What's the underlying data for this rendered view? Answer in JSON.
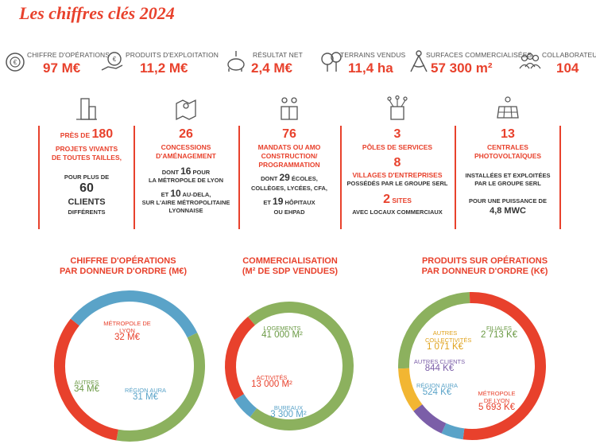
{
  "title": "Les chiffres clés 2024",
  "colors": {
    "red": "#e8412c",
    "green": "#8cb15e",
    "blue": "#5aa3c8",
    "yellow": "#f2b632",
    "purple": "#7b5ea8"
  },
  "kpis": [
    {
      "label": "CHIFFRE D'OPÉRATIONS",
      "value": "97 M€",
      "icon": "coins-icon"
    },
    {
      "label": "PRODUITS D'EXPLOITATION",
      "value": "11,2 M€",
      "icon": "money-bag-hand-icon"
    },
    {
      "label": "RÉSULTAT NET",
      "value": "2,4 M€",
      "icon": "piggy-bank-icon"
    },
    {
      "label": "TERRAINS VENDUS",
      "value": "11,4 ha",
      "icon": "trees-icon"
    },
    {
      "label": "SURFACES COMMERCIALISÉES",
      "value": "57 300 m²",
      "icon": "compass-icon"
    },
    {
      "label": "COLLABORATEURS",
      "value": "104",
      "icon": "people-icon"
    }
  ],
  "cols": {
    "c1": {
      "pre": "PRÈS DE ",
      "num": "180",
      "cap1": "PROJETS VIVANTS",
      "cap2": "DE TOUTES TAILLES,",
      "l1": "POUR PLUS DE",
      "num2": "60",
      "l2": "CLIENTS",
      "l3": "DIFFÉRENTS"
    },
    "c2": {
      "num": "26",
      "cap1": "CONCESSIONS",
      "cap2": "D'AMÉNAGEMENT",
      "a1": "DONT ",
      "n1": "16",
      "a2": " POUR",
      "a3": "LA MÉTROPOLE DE LYON",
      "b1": "ET ",
      "n2": "10",
      "b2": " AU-DELA,",
      "b3": "SUR L'AIRE MÉTROPOLITAINE",
      "b4": "LYONNAISE"
    },
    "c3": {
      "num": "76",
      "cap1": "MANDATS OU AMO",
      "cap2": "CONSTRUCTION/",
      "cap3": "PROGRAMMATION",
      "a1": "DONT ",
      "n1": "29",
      "a2": " ÉCOLES,",
      "a3": "COLLÈGES, LYCÉES, CFA,",
      "b1": "ET ",
      "n2": "19",
      "b2": " HÔPITAUX",
      "b3": "OU EHPAD"
    },
    "c4": {
      "num": "3",
      "cap1": "PÔLES DE SERVICES",
      "num2": "8",
      "cap2": "VILLAGES D'ENTREPRISES",
      "a1": "POSSÉDÉS PAR LE GROUPE SERL",
      "num3": "2",
      "cap3": " SITES",
      "b1": "AVEC LOCAUX COMMERCIAUX"
    },
    "c5": {
      "num": "13",
      "cap1": "CENTRALES",
      "cap2": "PHOTOVOLTAÏQUES",
      "a1": "INSTALLÉES ET  EXPLOITÉES",
      "a2": "PAR LE GROUPE SERL",
      "b1": "POUR UNE PUISSANCE DE",
      "b2": "4,8 MWC"
    }
  },
  "chart_data": [
    {
      "type": "pie",
      "title": "CHIFFRE D'OPÉRATIONS\nPAR DONNEUR D'ORDRE (M€)",
      "slices": [
        {
          "label": "MÉTROPOLE DE LYON",
          "value": 32,
          "display": "32 M€",
          "color": "#e8412c"
        },
        {
          "label": "RÉGION AURA",
          "value": 31,
          "display": "31 M€",
          "color": "#5aa3c8"
        },
        {
          "label": "AUTRES",
          "value": 34,
          "display": "34 M€",
          "color": "#8cb15e"
        }
      ]
    },
    {
      "type": "pie",
      "title": "COMMERCIALISATION\n(M² DE SDP VENDUES)",
      "slices": [
        {
          "label": "LOGEMENTS",
          "value": 41000,
          "display": "41 000 M²",
          "color": "#8cb15e"
        },
        {
          "label": "BUREAUX",
          "value": 3300,
          "display": "3 300 M²",
          "color": "#5aa3c8"
        },
        {
          "label": "ACTIVITÉS",
          "value": 13000,
          "display": "13 000 M²",
          "color": "#e8412c"
        }
      ]
    },
    {
      "type": "pie",
      "title": "PRODUITS SUR OPÉRATIONS\nPAR DONNEUR D'ORDRE (K€)",
      "slices": [
        {
          "label": "FILIALES",
          "value": 2713,
          "display": "2 713 K€",
          "color": "#8cb15e"
        },
        {
          "label": "MÉTROPOLE DE LYON",
          "value": 5693,
          "display": "5 693 K€",
          "color": "#e8412c"
        },
        {
          "label": "RÉGION AURA",
          "value": 524,
          "display": "524 K€",
          "color": "#5aa3c8"
        },
        {
          "label": "AUTRES CLIENTS",
          "value": 844,
          "display": "844 K€",
          "color": "#7b5ea8"
        },
        {
          "label": "AUTRES COLLECTIVITÉS",
          "value": 1071,
          "display": "1 071 K€",
          "color": "#f2b632"
        }
      ]
    }
  ]
}
